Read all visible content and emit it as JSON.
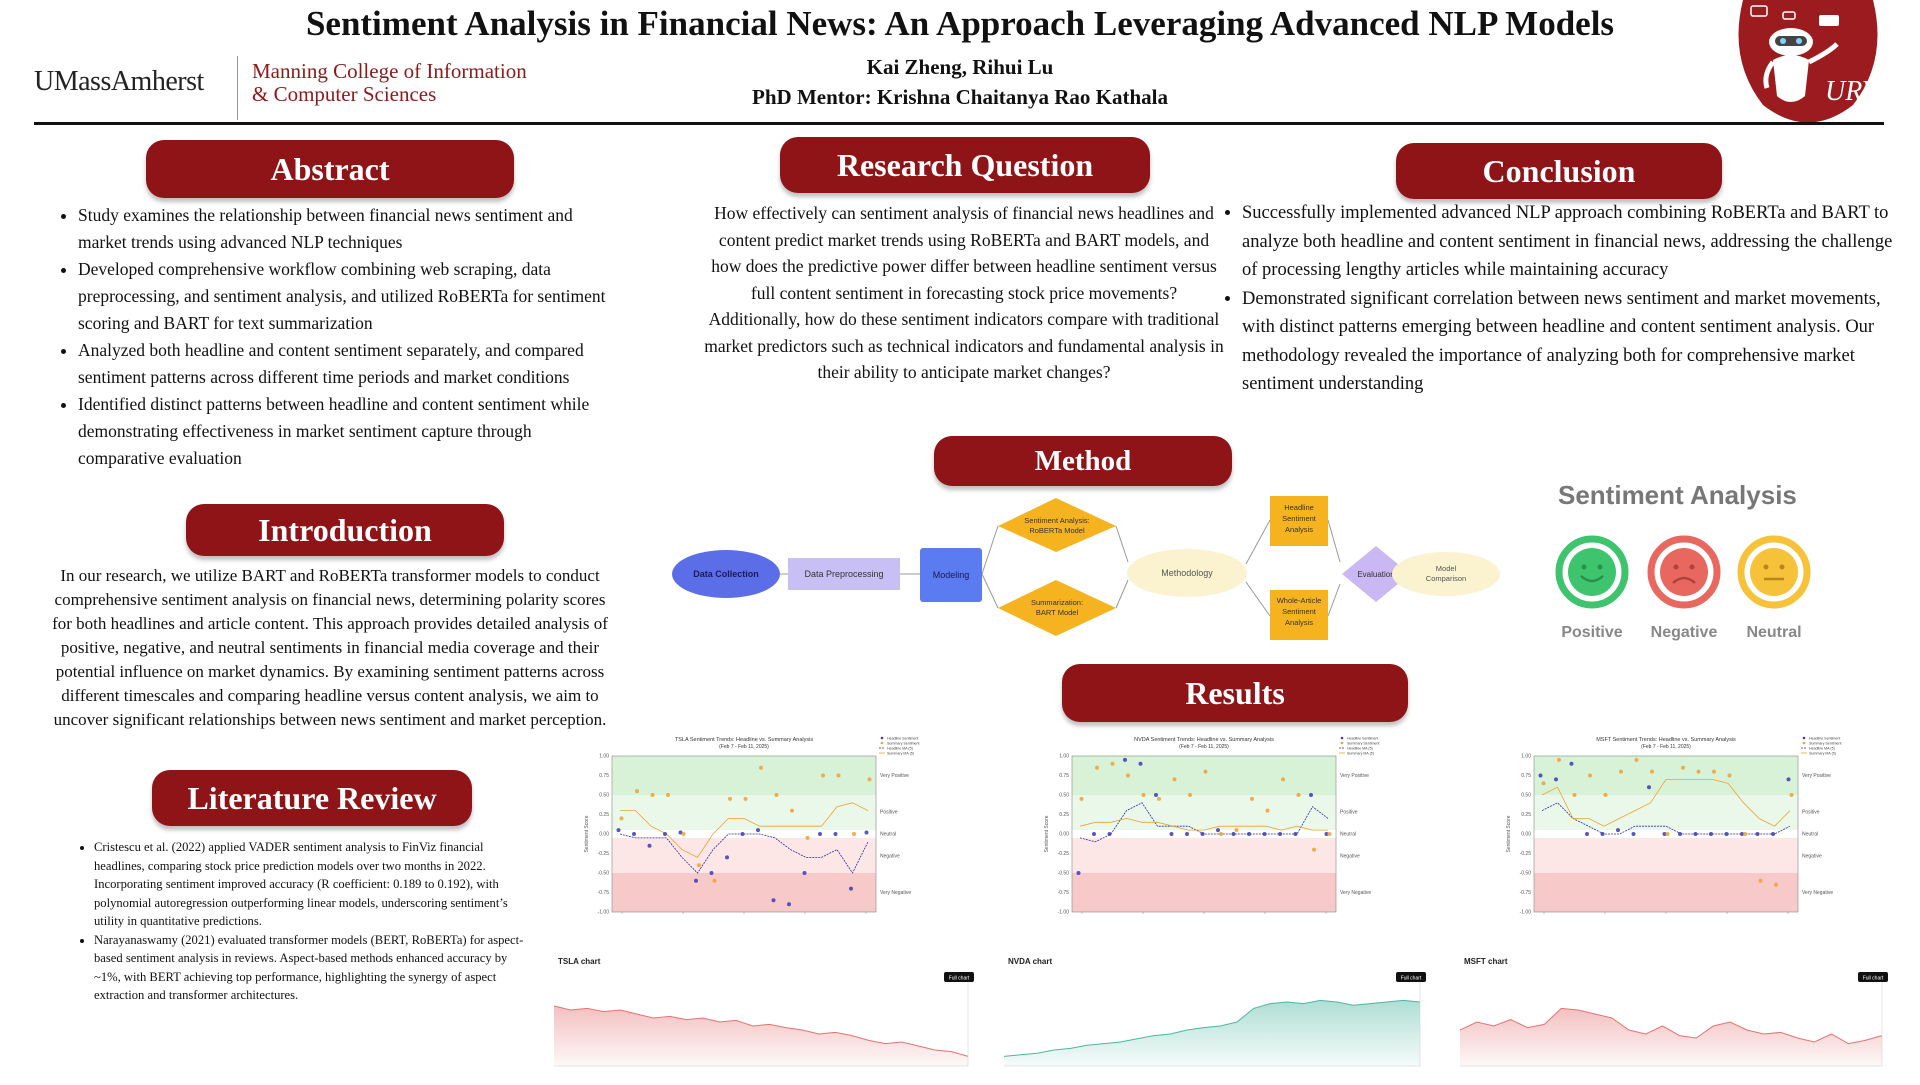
{
  "header": {
    "title": "Sentiment Analysis in Financial News: An Approach Leveraging Advanced NLP Models",
    "authors": "Kai Zheng, Rihui Lu",
    "mentor": "PhD Mentor: Krishna Chaitanya Rao Kathala",
    "logo_left": "UMassAmherst",
    "college_line1": "Manning College of Information",
    "college_line2": "& Computer Sciences",
    "logo_right_text": "URV"
  },
  "abstract": {
    "heading": "Abstract",
    "items": [
      "Study examines the relationship between financial news sentiment and market trends using advanced NLP techniques",
      "Developed comprehensive workflow combining web scraping, data preprocessing, and sentiment analysis, and utilized RoBERTa for sentiment scoring and BART for text summarization",
      "Analyzed both headline and content sentiment separately, and compared sentiment patterns across different time periods and market conditions",
      "Identified distinct patterns between headline and content sentiment while demonstrating effectiveness in market sentiment capture through comparative evaluation"
    ]
  },
  "introduction": {
    "heading": "Introduction",
    "text": "In our research, we utilize BART and RoBERTa transformer models to conduct comprehensive sentiment analysis on financial news, determining polarity scores for both headlines and article content. This approach provides detailed analysis of positive, negative, and neutral sentiments in financial media coverage and their potential influence on market dynamics. By examining sentiment patterns across different timescales and comparing headline versus content analysis, we aim to uncover significant relationships between news sentiment and market perception."
  },
  "literature": {
    "heading": "Literature Review",
    "items": [
      "Cristescu et al. (2022) applied VADER sentiment analysis to FinViz financial headlines, comparing stock price prediction models over two months in 2022. Incorporating sentiment improved accuracy (R coefficient: 0.189 to 0.192), with polynomial autoregression outperforming linear models, underscoring sentiment’s utility in quantitative predictions.",
      "Narayanaswamy (2021) evaluated transformer models (BERT, RoBERTa) for aspect-based sentiment analysis in reviews. Aspect-based methods enhanced accuracy by ~1%, with BERT achieving top performance, highlighting the synergy of aspect extraction and transformer architectures."
    ]
  },
  "research_question": {
    "heading": "Research Question",
    "text": "How effectively can sentiment analysis of financial news headlines and content predict market trends using RoBERTa and BART models, and how does the predictive power differ between headline sentiment versus full content sentiment in forecasting stock price movements? Additionally, how do these sentiment indicators compare with traditional market predictors such as technical indicators and fundamental analysis in their ability to anticipate market changes?"
  },
  "conclusion": {
    "heading": "Conclusion",
    "items": [
      "Successfully implemented advanced NLP approach combining RoBERTa and BART to analyze both headline and content sentiment in financial news, addressing the challenge of processing lengthy articles while maintaining accuracy",
      "Demonstrated significant correlation between news sentiment and market movements, with distinct patterns emerging between headline and content sentiment analysis. Our methodology revealed the importance of analyzing both for comprehensive market sentiment understanding"
    ]
  },
  "method": {
    "heading": "Method",
    "nodes": {
      "data_collection": "Data Collection",
      "data_preprocessing": "Data Preprocessing",
      "modeling": "Modeling",
      "roberta_1": "Sentiment Analysis:",
      "roberta_2": "RoBERTa Model",
      "bart_1": "Summarization:",
      "bart_2": "BART Model",
      "methodology": "Methodology",
      "headline_1": "Headline",
      "headline_2": "Sentiment",
      "headline_3": "Analysis",
      "whole_1": "Whole-Article",
      "whole_2": "Sentiment",
      "whole_3": "Analysis",
      "evaluation": "Evaluation",
      "model_comparison_1": "Model",
      "model_comparison_2": "Comparison"
    },
    "colors": {
      "ellipse_blue": "#5b6ee8",
      "lavender": "#c8bff5",
      "modeling_blue": "#5b7bf0",
      "diamond_orange": "#f5b41f",
      "methodology_cream": "#fbf3cf",
      "box_orange": "#f5b41f",
      "evaluation_purple": "#c9b8f3"
    }
  },
  "sentiment_legend": {
    "title": "Sentiment Analysis",
    "items": [
      {
        "label": "Positive",
        "color": "#3ec46d",
        "face": "smile"
      },
      {
        "label": "Negative",
        "color": "#e8685f",
        "face": "frown"
      },
      {
        "label": "Neutral",
        "color": "#f5c23a",
        "face": "flat"
      }
    ]
  },
  "results": {
    "heading": "Results",
    "trend_charts": [
      {
        "title": "TSLA Sentiment Trends: Headline vs. Summary Analysis",
        "subtitle": "(Feb 7 - Feb 11, 2025)"
      },
      {
        "title": "NVDA Sentiment Trends: Headline vs. Summary Analysis",
        "subtitle": "(Feb 7 - Feb 11, 2025)"
      },
      {
        "title": "MSFT Sentiment Trends: Headline vs. Summary Analysis",
        "subtitle": "(Feb 7 - Feb 11, 2025)"
      }
    ],
    "zone_labels": [
      "Very Positive",
      "Positive",
      "Neutral",
      "Negative",
      "Very Negative"
    ],
    "legend": [
      "Headline Sentiment",
      "Summary Sentiment",
      "Headline MA (5)",
      "Summary MA (5)"
    ],
    "y_ticks": [
      "1.00",
      "0.75",
      "0.50",
      "0.25",
      "0.00",
      "-0.25",
      "-0.50",
      "-0.75",
      "-1.00"
    ],
    "y_label": "Sentiment Score",
    "price_charts": [
      {
        "label": "TSLA chart",
        "button": "Full chart",
        "color": "#e57373"
      },
      {
        "label": "NVDA chart",
        "button": "Full chart",
        "color": "#4db6a0"
      },
      {
        "label": "MSFT chart",
        "button": "Full chart",
        "color": "#e57373"
      }
    ]
  },
  "chart_data": [
    {
      "type": "scatter",
      "title": "TSLA Sentiment Trends: Headline vs. Summary Analysis",
      "subtitle": "(Feb 7 - Feb 11, 2025)",
      "ylabel": "Sentiment Score",
      "ylim": [
        -1.0,
        1.0
      ],
      "legend_position": "top-right",
      "series": [
        {
          "name": "Headline Sentiment",
          "color": "#3b3bb3",
          "values": [
            0.05,
            0.0,
            -0.15,
            0.0,
            0.02,
            -0.6,
            -0.5,
            -0.3,
            0.0,
            0.05,
            -0.85,
            -0.9,
            -0.5,
            0.0,
            0.0,
            -0.7,
            0.02
          ]
        },
        {
          "name": "Summary Sentiment",
          "color": "#f0a030",
          "values": [
            0.2,
            0.55,
            0.5,
            0.5,
            0.0,
            -0.4,
            -0.6,
            0.45,
            0.45,
            0.85,
            0.5,
            0.3,
            -0.05,
            0.75,
            0.75,
            0.0,
            0.7
          ]
        },
        {
          "name": "Headline MA (5)",
          "color": "#2a2a9a",
          "values": [
            0.0,
            -0.05,
            -0.05,
            -0.05,
            -0.3,
            -0.5,
            -0.2,
            0.0,
            0.0,
            0.0,
            -0.05,
            -0.2,
            -0.3,
            -0.3,
            -0.2,
            -0.5,
            -0.1
          ]
        },
        {
          "name": "Summary MA (5)",
          "color": "#f0a030",
          "values": [
            0.3,
            0.3,
            0.1,
            0.0,
            -0.2,
            -0.3,
            0.0,
            0.2,
            0.2,
            0.1,
            0.1,
            0.1,
            0.1,
            0.1,
            0.35,
            0.4,
            0.3
          ]
        }
      ]
    },
    {
      "type": "scatter",
      "title": "NVDA Sentiment Trends: Headline vs. Summary Analysis",
      "subtitle": "(Feb 7 - Feb 11, 2025)",
      "ylabel": "Sentiment Score",
      "ylim": [
        -1.0,
        1.0
      ],
      "legend_position": "top-right",
      "series": [
        {
          "name": "Headline Sentiment",
          "color": "#3b3bb3",
          "values": [
            -0.5,
            0.0,
            0.0,
            0.95,
            0.9,
            0.5,
            0.0,
            0.0,
            0.0,
            0.05,
            0.0,
            0.0,
            0.0,
            0.0,
            0.0,
            0.5,
            0.0
          ]
        },
        {
          "name": "Summary Sentiment",
          "color": "#f0a030",
          "values": [
            0.45,
            0.85,
            0.9,
            0.75,
            0.5,
            0.45,
            0.7,
            0.5,
            0.8,
            0.0,
            0.05,
            0.45,
            0.3,
            0.7,
            0.5,
            -0.2,
            0.0
          ]
        },
        {
          "name": "Headline MA (5)",
          "color": "#2a2a9a",
          "values": [
            -0.05,
            -0.1,
            0.0,
            0.3,
            0.4,
            0.1,
            0.1,
            0.1,
            0.0,
            0.0,
            0.0,
            0.0,
            0.0,
            0.0,
            0.0,
            0.35,
            0.2
          ]
        },
        {
          "name": "Summary MA (5)",
          "color": "#f0a030",
          "values": [
            0.1,
            0.15,
            0.15,
            0.2,
            0.15,
            0.15,
            0.1,
            0.05,
            0.05,
            0.1,
            0.1,
            0.1,
            0.1,
            0.05,
            0.1,
            0.05,
            0.05
          ]
        }
      ]
    },
    {
      "type": "scatter",
      "title": "MSFT Sentiment Trends: Headline vs. Summary Analysis",
      "subtitle": "(Feb 7 - Feb 11, 2025)",
      "ylabel": "Sentiment Score",
      "ylim": [
        -1.0,
        1.0
      ],
      "legend_position": "top-right",
      "series": [
        {
          "name": "Headline Sentiment",
          "color": "#3b3bb3",
          "values": [
            0.75,
            0.7,
            0.9,
            0.0,
            0.0,
            0.05,
            0.0,
            0.6,
            0.0,
            0.0,
            0.0,
            0.0,
            0.0,
            0.0,
            0.0,
            0.0,
            0.7
          ]
        },
        {
          "name": "Summary Sentiment",
          "color": "#f0a030",
          "values": [
            0.65,
            0.95,
            0.5,
            0.75,
            0.5,
            0.8,
            0.95,
            0.8,
            0.0,
            0.85,
            0.8,
            0.8,
            0.75,
            0.0,
            -0.6,
            -0.65,
            0.5
          ]
        },
        {
          "name": "Headline MA (5)",
          "color": "#2a2a9a",
          "values": [
            0.3,
            0.4,
            0.2,
            0.1,
            0.0,
            0.0,
            0.1,
            0.1,
            0.1,
            0.0,
            0.0,
            0.0,
            0.0,
            0.0,
            0.0,
            0.0,
            0.1
          ]
        },
        {
          "name": "Summary MA (5)",
          "color": "#f0a030",
          "values": [
            0.5,
            0.6,
            0.2,
            0.2,
            0.1,
            0.2,
            0.3,
            0.4,
            0.7,
            0.7,
            0.7,
            0.7,
            0.65,
            0.4,
            0.2,
            0.1,
            0.3
          ]
        }
      ]
    }
  ]
}
